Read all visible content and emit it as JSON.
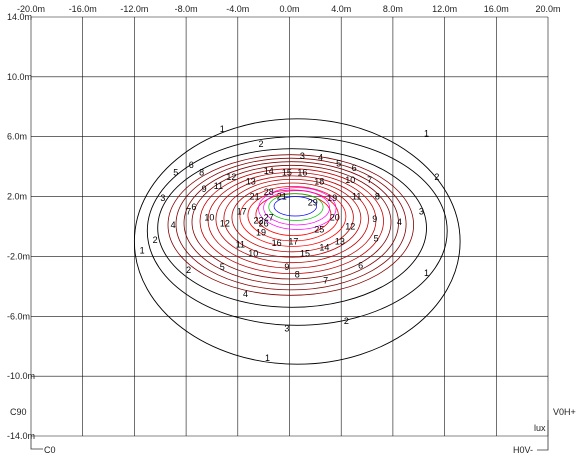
{
  "chart_data": {
    "type": "contour",
    "x_ticks": [
      "-20.0m",
      "-16.0m",
      "-12.0m",
      "-8.0m",
      "-4.0m",
      "0.0m",
      "4.0m",
      "8.0m",
      "12.0m",
      "16.0m",
      "20.0m"
    ],
    "y_ticks": [
      "14.0m",
      "10.0m",
      "6.0m",
      "2.0m",
      "-2.0m",
      "-6.0m",
      "-10.0m",
      "-14.0m"
    ],
    "xlim": [
      -20,
      20
    ],
    "ylim": [
      -14,
      14
    ],
    "grid": true,
    "contour_line_colors": [
      "#000000",
      "#800000",
      "#c00000",
      "#ff0000",
      "#ff00ff",
      "#00c000",
      "#0000ff"
    ],
    "contour_labels": [
      {
        "text": "1",
        "x": -5.2,
        "y": 6.5
      },
      {
        "text": "1",
        "x": 10.6,
        "y": 6.2
      },
      {
        "text": "1",
        "x": -11.4,
        "y": -1.6
      },
      {
        "text": "1",
        "x": 10.6,
        "y": -3.1
      },
      {
        "text": "1",
        "x": -1.7,
        "y": -8.8
      },
      {
        "text": "2",
        "x": -2.2,
        "y": 5.5
      },
      {
        "text": "2",
        "x": 11.4,
        "y": 3.3
      },
      {
        "text": "2",
        "x": -10.4,
        "y": -0.9
      },
      {
        "text": "2",
        "x": -7.8,
        "y": -2.9
      },
      {
        "text": "2",
        "x": 4.4,
        "y": -6.3
      },
      {
        "text": "3",
        "x": 1.0,
        "y": 4.7
      },
      {
        "text": "3",
        "x": 10.2,
        "y": 1.0
      },
      {
        "text": "3",
        "x": -9.8,
        "y": 1.9
      },
      {
        "text": "3",
        "x": -0.2,
        "y": -6.8
      },
      {
        "text": "4",
        "x": 2.4,
        "y": 4.6
      },
      {
        "text": "4",
        "x": 8.5,
        "y": 0.3
      },
      {
        "text": "4",
        "x": -9.0,
        "y": 0.1
      },
      {
        "text": "4",
        "x": -3.4,
        "y": -4.5
      },
      {
        "text": "5",
        "x": 3.8,
        "y": 4.2
      },
      {
        "text": "5",
        "x": 6.7,
        "y": -0.8
      },
      {
        "text": "5",
        "x": -8.8,
        "y": 3.6
      },
      {
        "text": "5",
        "x": -5.2,
        "y": -2.7
      },
      {
        "text": "6",
        "x": 5.0,
        "y": 3.9
      },
      {
        "text": "6",
        "x": -7.4,
        "y": 1.3
      },
      {
        "text": "6",
        "x": -7.6,
        "y": 4.1
      },
      {
        "text": "6",
        "x": 5.5,
        "y": -2.6
      },
      {
        "text": "7",
        "x": 6.2,
        "y": 3.1
      },
      {
        "text": "7",
        "x": -7.8,
        "y": 1.0
      },
      {
        "text": "7",
        "x": 2.8,
        "y": -3.6
      },
      {
        "text": "8",
        "x": -6.8,
        "y": 3.6
      },
      {
        "text": "8",
        "x": 6.8,
        "y": 2.0
      },
      {
        "text": "8",
        "x": 0.6,
        "y": -3.2
      },
      {
        "text": "9",
        "x": -6.6,
        "y": 2.5
      },
      {
        "text": "9",
        "x": 6.6,
        "y": 0.5
      },
      {
        "text": "9",
        "x": -0.2,
        "y": -2.7
      },
      {
        "text": "10",
        "x": -6.2,
        "y": 0.6
      },
      {
        "text": "10",
        "x": 4.7,
        "y": 3.1
      },
      {
        "text": "10",
        "x": -2.8,
        "y": -1.8
      },
      {
        "text": "11",
        "x": -5.5,
        "y": 2.7
      },
      {
        "text": "11",
        "x": 5.2,
        "y": 2.0
      },
      {
        "text": "11",
        "x": -3.8,
        "y": -1.2
      },
      {
        "text": "12",
        "x": -4.5,
        "y": 3.3
      },
      {
        "text": "12",
        "x": -5.0,
        "y": 0.2
      },
      {
        "text": "12",
        "x": 4.7,
        "y": 0.0
      },
      {
        "text": "13",
        "x": -3.0,
        "y": 3.0
      },
      {
        "text": "13",
        "x": 3.9,
        "y": -1.0
      },
      {
        "text": "14",
        "x": -1.6,
        "y": 3.7
      },
      {
        "text": "14",
        "x": 2.7,
        "y": -1.4
      },
      {
        "text": "15",
        "x": -0.2,
        "y": 3.6
      },
      {
        "text": "15",
        "x": 1.2,
        "y": -1.8
      },
      {
        "text": "16",
        "x": 1.0,
        "y": 3.6
      },
      {
        "text": "16",
        "x": -1.0,
        "y": -1.1
      },
      {
        "text": "17",
        "x": -3.7,
        "y": 1.0
      },
      {
        "text": "17",
        "x": 0.3,
        "y": -1.0
      },
      {
        "text": "18",
        "x": 2.3,
        "y": 3.0
      },
      {
        "text": "19",
        "x": -2.2,
        "y": -0.4
      },
      {
        "text": "19",
        "x": 3.3,
        "y": 1.9
      },
      {
        "text": "20",
        "x": 3.5,
        "y": 0.6
      },
      {
        "text": "21",
        "x": -2.7,
        "y": 2.0
      },
      {
        "text": "21",
        "x": -0.6,
        "y": 2.0
      },
      {
        "text": "22",
        "x": -2.4,
        "y": 0.4
      },
      {
        "text": "25",
        "x": 2.3,
        "y": -0.2
      },
      {
        "text": "26",
        "x": -2.0,
        "y": 0.2
      },
      {
        "text": "27",
        "x": -1.6,
        "y": 0.6
      },
      {
        "text": "28",
        "x": -1.6,
        "y": 2.3
      },
      {
        "text": "29",
        "x": 1.8,
        "y": 1.6
      }
    ]
  },
  "corner_labels": {
    "c90": "C90",
    "c0": "C0",
    "v0h_plus": "V0H+",
    "h0v_minus": "H0V-",
    "unit": "lux"
  }
}
